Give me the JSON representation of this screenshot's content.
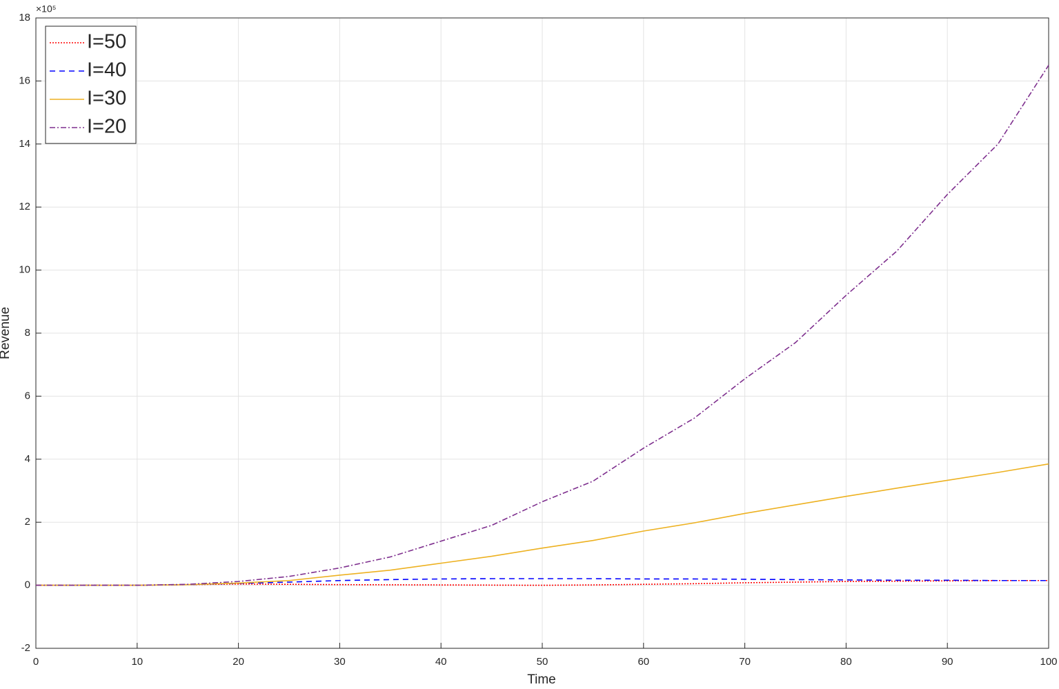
{
  "chart_data": {
    "type": "line",
    "xlabel": "Time",
    "ylabel": "Revenue",
    "y_multiplier": "×10⁵",
    "x": [
      0,
      5,
      10,
      15,
      20,
      25,
      30,
      35,
      40,
      45,
      50,
      55,
      60,
      65,
      70,
      75,
      80,
      85,
      90,
      95,
      100
    ],
    "series": [
      {
        "name": "I=50",
        "color": "#ff0000",
        "dash": "2,2",
        "values": [
          0,
          0,
          0,
          0.02,
          0.04,
          0.03,
          0.02,
          0.015,
          0.01,
          0.005,
          0,
          0.01,
          0.03,
          0.05,
          0.08,
          0.1,
          0.12,
          0.13,
          0.14,
          0.15,
          0.15
        ]
      },
      {
        "name": "I=40",
        "color": "#0000ff",
        "dash": "8,6",
        "values": [
          0,
          0,
          0,
          0.02,
          0.06,
          0.1,
          0.15,
          0.18,
          0.2,
          0.21,
          0.21,
          0.21,
          0.2,
          0.2,
          0.19,
          0.18,
          0.17,
          0.16,
          0.16,
          0.15,
          0.15
        ]
      },
      {
        "name": "I=30",
        "color": "#edb120",
        "dash": "none",
        "values": [
          0,
          0,
          0,
          0.02,
          0.07,
          0.15,
          0.32,
          0.48,
          0.7,
          0.92,
          1.18,
          1.42,
          1.72,
          1.98,
          2.28,
          2.55,
          2.82,
          3.08,
          3.33,
          3.58,
          3.85
        ]
      },
      {
        "name": "I=20",
        "color": "#7e2f8e",
        "dash": "8,3,2,3",
        "values": [
          0,
          0,
          0,
          0.03,
          0.12,
          0.28,
          0.55,
          0.9,
          1.4,
          1.9,
          2.65,
          3.3,
          4.35,
          5.3,
          6.55,
          7.7,
          9.2,
          10.6,
          12.4,
          14.0,
          16.5
        ]
      }
    ],
    "xlim": [
      0,
      100
    ],
    "xticks": [
      0,
      10,
      20,
      30,
      40,
      50,
      60,
      70,
      80,
      90,
      100
    ],
    "ylim": [
      -2,
      18
    ],
    "yticks": [
      -2,
      0,
      2,
      4,
      6,
      8,
      10,
      12,
      14,
      16,
      18
    ],
    "grid": true,
    "legend": "upper left"
  }
}
